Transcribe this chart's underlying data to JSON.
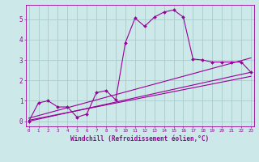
{
  "xlabel": "Windchill (Refroidissement éolien,°C)",
  "bg_color": "#cce8e8",
  "line_color": "#990099",
  "grid_color": "#aacccc",
  "xticks": [
    0,
    1,
    2,
    3,
    4,
    5,
    6,
    7,
    8,
    9,
    10,
    11,
    12,
    13,
    14,
    15,
    16,
    17,
    18,
    19,
    20,
    21,
    22,
    23
  ],
  "yticks": [
    0,
    1,
    2,
    3,
    4,
    5
  ],
  "xlim": [
    -0.3,
    23.3
  ],
  "ylim": [
    -0.25,
    5.7
  ],
  "line1_x": [
    0,
    1,
    2,
    3,
    4,
    5,
    6,
    7,
    8,
    9,
    10,
    11,
    12,
    13,
    14,
    15,
    16,
    17,
    18,
    19,
    20,
    21,
    22,
    23
  ],
  "line1_y": [
    0.0,
    0.9,
    1.0,
    0.7,
    0.7,
    0.2,
    0.35,
    1.4,
    1.5,
    1.05,
    3.85,
    5.05,
    4.65,
    5.1,
    5.35,
    5.45,
    5.1,
    3.05,
    3.0,
    2.9,
    2.9,
    2.9,
    2.9,
    2.4
  ],
  "line2_x": [
    0,
    23
  ],
  "line2_y": [
    0.0,
    2.4
  ],
  "line3_x": [
    0,
    23
  ],
  "line3_y": [
    0.15,
    3.1
  ],
  "line4_x": [
    0,
    23
  ],
  "line4_y": [
    0.05,
    2.2
  ]
}
